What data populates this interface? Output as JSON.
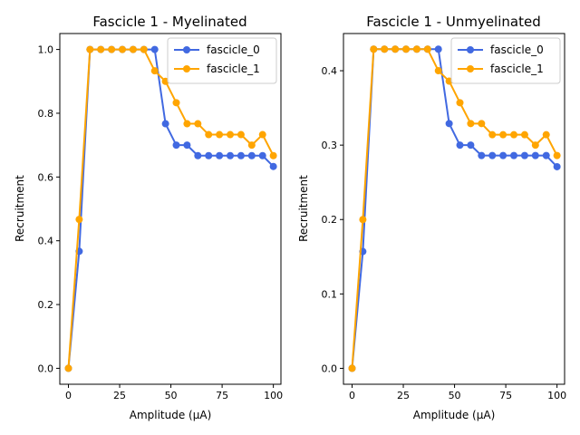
{
  "chart_data": [
    {
      "type": "line",
      "title": "Fascicle 1 - Myelinated",
      "xlabel": "Amplitude (µA)",
      "ylabel": "Recruitment",
      "xlim": [
        -4.2,
        103.7
      ],
      "ylim": [
        -0.05,
        1.05
      ],
      "xticks": [
        0,
        25,
        50,
        75,
        100
      ],
      "xtick_labels": [
        "0",
        "25",
        "50",
        "75",
        "100"
      ],
      "yticks": [
        0.0,
        0.2,
        0.4,
        0.6,
        0.8,
        1.0
      ],
      "ytick_labels": [
        "0.0",
        "0.2",
        "0.4",
        "0.6",
        "0.8",
        "1.0"
      ],
      "legend_position": "top-right",
      "x": [
        0,
        5.26,
        10.53,
        15.79,
        21.05,
        26.32,
        31.58,
        36.84,
        42.11,
        47.37,
        52.63,
        57.89,
        63.16,
        68.42,
        73.68,
        78.95,
        84.21,
        89.47,
        94.74,
        100
      ],
      "series": [
        {
          "name": "fascicle_0",
          "color": "#4169e1",
          "values": [
            0.0,
            0.367,
            1.0,
            1.0,
            1.0,
            1.0,
            1.0,
            1.0,
            1.0,
            0.767,
            0.7,
            0.7,
            0.667,
            0.667,
            0.667,
            0.667,
            0.667,
            0.667,
            0.667,
            0.633
          ]
        },
        {
          "name": "fascicle_1",
          "color": "#ffa500",
          "values": [
            0.0,
            0.467,
            1.0,
            1.0,
            1.0,
            1.0,
            1.0,
            1.0,
            0.933,
            0.9,
            0.833,
            0.767,
            0.767,
            0.733,
            0.733,
            0.733,
            0.733,
            0.7,
            0.733,
            0.667
          ]
        }
      ]
    },
    {
      "type": "line",
      "title": "Fascicle 1 - Unmyelinated",
      "xlabel": "Amplitude (µA)",
      "ylabel": "Recruitment",
      "xlim": [
        -4.2,
        103.7
      ],
      "ylim": [
        -0.0214,
        0.45
      ],
      "xticks": [
        0,
        25,
        50,
        75,
        100
      ],
      "xtick_labels": [
        "0",
        "25",
        "50",
        "75",
        "100"
      ],
      "yticks": [
        0.0,
        0.1,
        0.2,
        0.3,
        0.4
      ],
      "ytick_labels": [
        "0.0",
        "0.1",
        "0.2",
        "0.3",
        "0.4"
      ],
      "legend_position": "top-right",
      "x": [
        0,
        5.26,
        10.53,
        15.79,
        21.05,
        26.32,
        31.58,
        36.84,
        42.11,
        47.37,
        52.63,
        57.89,
        63.16,
        68.42,
        73.68,
        78.95,
        84.21,
        89.47,
        94.74,
        100
      ],
      "series": [
        {
          "name": "fascicle_0",
          "color": "#4169e1",
          "values": [
            0.0,
            0.157,
            0.429,
            0.429,
            0.429,
            0.429,
            0.429,
            0.429,
            0.429,
            0.329,
            0.3,
            0.3,
            0.286,
            0.286,
            0.286,
            0.286,
            0.286,
            0.286,
            0.286,
            0.271
          ]
        },
        {
          "name": "fascicle_1",
          "color": "#ffa500",
          "values": [
            0.0,
            0.2,
            0.429,
            0.429,
            0.429,
            0.429,
            0.429,
            0.429,
            0.4,
            0.386,
            0.357,
            0.329,
            0.329,
            0.314,
            0.314,
            0.314,
            0.314,
            0.3,
            0.314,
            0.286
          ]
        }
      ]
    }
  ]
}
